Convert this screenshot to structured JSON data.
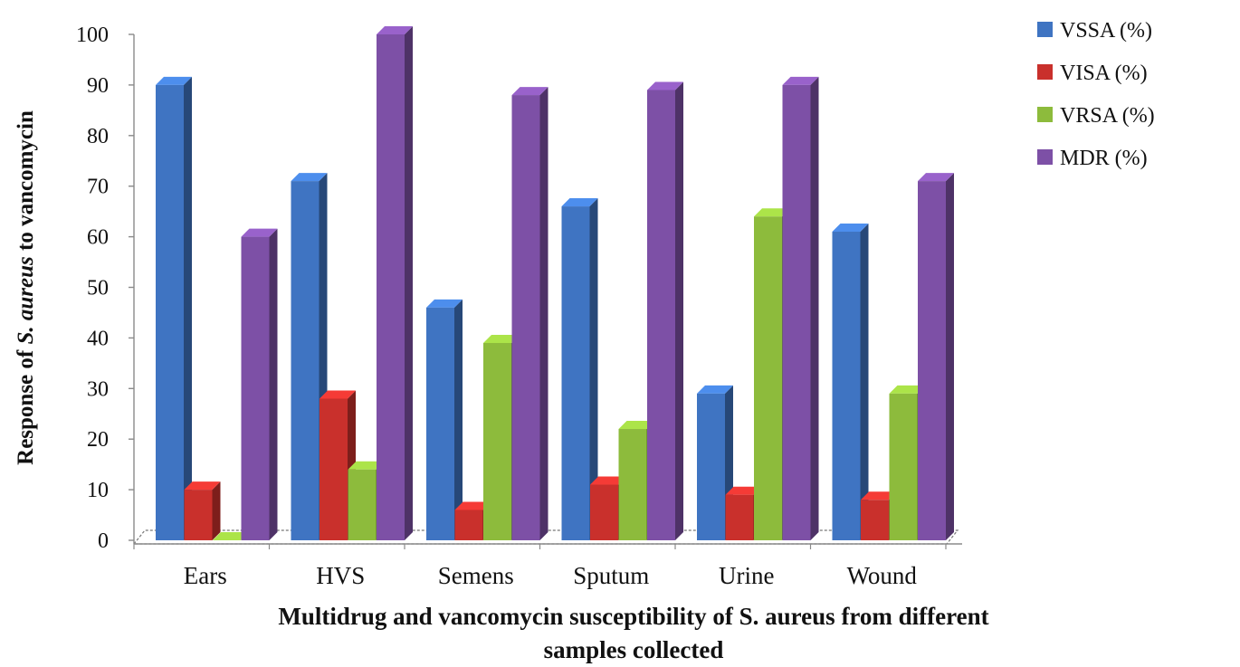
{
  "chart_data": {
    "type": "bar",
    "categories": [
      "Ears",
      "HVS",
      "Semens",
      "Sputum",
      "Urine",
      "Wound"
    ],
    "series": [
      {
        "name": "VSSA (%)",
        "color": "#3F74C2",
        "values": [
          90,
          71,
          46,
          66,
          29,
          61
        ]
      },
      {
        "name": "VISA  (%)",
        "color": "#C9302C",
        "values": [
          10,
          28,
          6,
          11,
          9,
          8
        ]
      },
      {
        "name": "VRSA  (%)",
        "color": "#8DBB3C",
        "values": [
          0,
          14,
          39,
          22,
          64,
          29
        ]
      },
      {
        "name": "MDR (%)",
        "color": "#7D50A6",
        "values": [
          60,
          100,
          88,
          89,
          90,
          71
        ]
      }
    ],
    "yticks": [
      "0",
      "10",
      "20",
      "30",
      "40",
      "50",
      "60",
      "70",
      "80",
      "90",
      "100"
    ],
    "ylim": [
      0,
      100
    ],
    "xlabel_line1": "Multidrug and vancomycin susceptibility of S. aureus from different",
    "xlabel_line2": "samples collected",
    "ylabel_prefix": "Response of ",
    "ylabel_italic": "S. aureus",
    "ylabel_suffix": " to vancomycin",
    "legend_position": "top-right",
    "style": "3d-clustered-column"
  }
}
